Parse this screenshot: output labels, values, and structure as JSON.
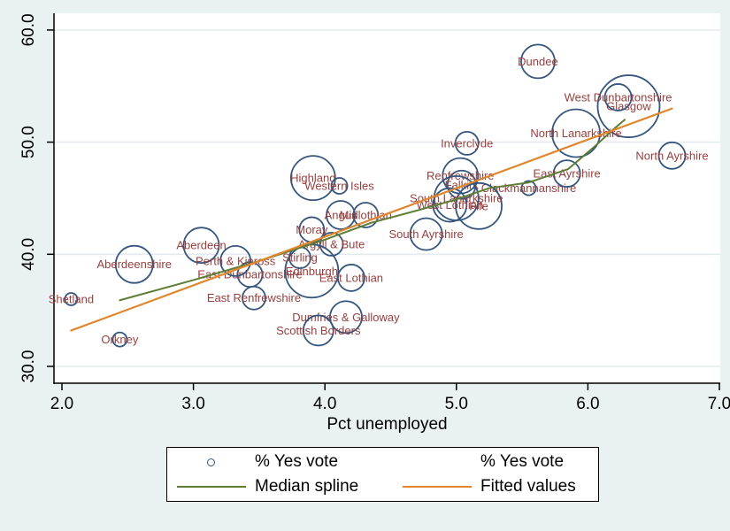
{
  "chart_data": {
    "type": "scatter",
    "subtype": "bubble-labeled",
    "xlabel": "Pct unemployed",
    "ylabel": "",
    "xlim": [
      1.94,
      7.01
    ],
    "ylim": [
      28.5,
      61.5
    ],
    "grid": "horizontal-only",
    "x_ticks": [
      {
        "value": 2,
        "label": "2.0"
      },
      {
        "value": 3,
        "label": "3.0"
      },
      {
        "value": 4,
        "label": "4.0"
      },
      {
        "value": 5,
        "label": "5.0"
      },
      {
        "value": 6,
        "label": "6.0"
      },
      {
        "value": 7,
        "label": "7.0"
      }
    ],
    "y_ticks": [
      {
        "value": 30,
        "label": "30.0"
      },
      {
        "value": 40,
        "label": "40.0"
      },
      {
        "value": 50,
        "label": "50.0"
      },
      {
        "value": 60,
        "label": "60.0"
      }
    ],
    "series": [
      {
        "name": "% Yes vote",
        "type": "bubble",
        "x_is": "Pct unemployed",
        "y_is": "% Yes vote",
        "points": [
          {
            "name": "Aberdeen",
            "x": 3.06,
            "y": 40.8,
            "r": 20
          },
          {
            "name": "Aberdeenshire",
            "x": 2.55,
            "y": 39.1,
            "r": 21
          },
          {
            "name": "Angus",
            "x": 4.12,
            "y": 43.5,
            "r": 16
          },
          {
            "name": "Argyll & Bute",
            "x": 4.05,
            "y": 40.9,
            "r": 13
          },
          {
            "name": "Clackmannanshire",
            "x": 5.55,
            "y": 45.9,
            "r": 8
          },
          {
            "name": "Dumfries & Galloway",
            "x": 4.16,
            "y": 34.4,
            "r": 18
          },
          {
            "name": "Dundee",
            "x": 5.62,
            "y": 57.2,
            "r": 19
          },
          {
            "name": "East Ayrshire",
            "x": 5.84,
            "y": 47.2,
            "r": 15
          },
          {
            "name": "East Dunbartonshire",
            "x": 3.43,
            "y": 38.2,
            "r": 14
          },
          {
            "name": "East Lothian",
            "x": 4.2,
            "y": 37.9,
            "r": 15
          },
          {
            "name": "East Renfrewshire",
            "x": 3.46,
            "y": 36.1,
            "r": 13
          },
          {
            "name": "Edinburgh",
            "x": 3.9,
            "y": 38.5,
            "r": 30
          },
          {
            "name": "Falkirk",
            "x": 5.04,
            "y": 46.2,
            "r": 16
          },
          {
            "name": "Fife",
            "x": 5.17,
            "y": 44.3,
            "r": 26
          },
          {
            "name": "Glasgow",
            "x": 6.31,
            "y": 53.2,
            "r": 35
          },
          {
            "name": "Highland",
            "x": 3.91,
            "y": 46.8,
            "r": 25
          },
          {
            "name": "Inverclyde",
            "x": 5.08,
            "y": 49.9,
            "r": 13
          },
          {
            "name": "Midlothian",
            "x": 4.31,
            "y": 43.5,
            "r": 14
          },
          {
            "name": "Moray",
            "x": 3.9,
            "y": 42.2,
            "r": 14
          },
          {
            "name": "North Ayrshire",
            "x": 6.64,
            "y": 48.8,
            "r": 15
          },
          {
            "name": "North Lanarkshire",
            "x": 5.91,
            "y": 50.8,
            "r": 27
          },
          {
            "name": "Orkney",
            "x": 2.44,
            "y": 32.4,
            "r": 8
          },
          {
            "name": "Perth & Kinross",
            "x": 3.32,
            "y": 39.4,
            "r": 17
          },
          {
            "name": "Renfrewshire",
            "x": 5.03,
            "y": 47.0,
            "r": 20
          },
          {
            "name": "Scottish Borders",
            "x": 3.95,
            "y": 33.2,
            "r": 17
          },
          {
            "name": "Shetland",
            "x": 2.07,
            "y": 36.0,
            "r": 7
          },
          {
            "name": "South Ayrshire",
            "x": 4.77,
            "y": 41.8,
            "r": 18
          },
          {
            "name": "South Lanarkshire",
            "x": 5.0,
            "y": 45.0,
            "r": 25
          },
          {
            "name": "Stirling",
            "x": 3.81,
            "y": 39.7,
            "r": 12
          },
          {
            "name": "West Dunbartonshire",
            "x": 6.23,
            "y": 54.0,
            "r": 15
          },
          {
            "name": "West Lothian",
            "x": 4.95,
            "y": 44.4,
            "r": 19
          },
          {
            "name": "Western Isles",
            "x": 4.11,
            "y": 46.1,
            "r": 9
          }
        ]
      },
      {
        "name": "Median spline",
        "type": "line",
        "points": [
          [
            2.44,
            35.9
          ],
          [
            3.0,
            37.7
          ],
          [
            3.5,
            39.4
          ],
          [
            4.0,
            41.3
          ],
          [
            4.35,
            42.8
          ],
          [
            4.7,
            43.9
          ],
          [
            5.0,
            44.9
          ],
          [
            5.25,
            45.9
          ],
          [
            5.55,
            46.4
          ],
          [
            5.85,
            47.6
          ],
          [
            6.05,
            49.6
          ],
          [
            6.18,
            51.0
          ],
          [
            6.28,
            52.0
          ]
        ]
      },
      {
        "name": "Fitted values",
        "type": "line",
        "points": [
          [
            2.07,
            33.2
          ],
          [
            6.64,
            53.0
          ]
        ]
      }
    ],
    "colors": {
      "bg": "#eaf1f3",
      "plot_bg": "#ffffff",
      "grid": "#e3ebee",
      "axis": "#000000",
      "marker": "#35567d",
      "marker_label": "#97403f",
      "spline": "#5e7d35",
      "fit": "#e0862c"
    }
  },
  "legend": {
    "position": "bottom-center",
    "entries": [
      {
        "symbol": "circle",
        "label": "% Yes vote"
      },
      {
        "symbol": "none",
        "label": "% Yes vote"
      },
      {
        "symbol": "line-green",
        "label": "Median spline"
      },
      {
        "symbol": "line-orange",
        "label": "Fitted values"
      }
    ]
  }
}
